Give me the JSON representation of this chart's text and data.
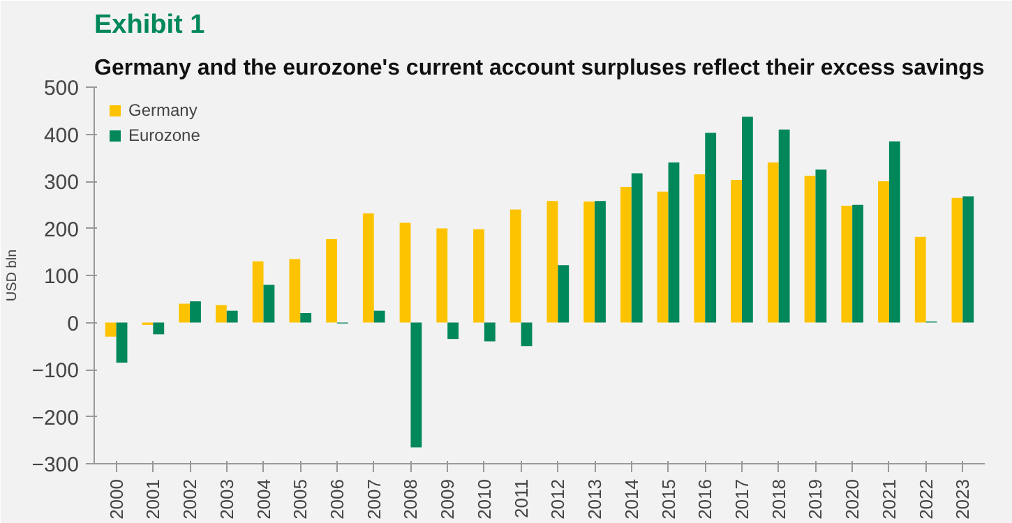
{
  "chart_data": {
    "type": "bar",
    "title": "Exhibit 1",
    "subtitle": "Germany and the eurozone's current account surpluses reflect their excess savings",
    "ylabel": "USD bln",
    "categories": [
      "2000",
      "2001",
      "2002",
      "2003",
      "2004",
      "2005",
      "2006",
      "2007",
      "2008",
      "2009",
      "2010",
      "2011",
      "2012",
      "2013",
      "2014",
      "2015",
      "2016",
      "2017",
      "2018",
      "2019",
      "2020",
      "2021",
      "2022",
      "2023"
    ],
    "series": [
      {
        "name": "Germany",
        "color": "#fdc300",
        "values": [
          -30,
          -5,
          40,
          37,
          130,
          135,
          177,
          232,
          212,
          200,
          198,
          240,
          258,
          257,
          288,
          278,
          315,
          303,
          340,
          312,
          248,
          300,
          182,
          265
        ]
      },
      {
        "name": "Eurozone",
        "color": "#00875a",
        "values": [
          -85,
          -25,
          45,
          25,
          80,
          20,
          -2,
          25,
          -265,
          -35,
          -40,
          -50,
          122,
          258,
          317,
          340,
          403,
          437,
          410,
          325,
          250,
          385,
          2,
          268
        ]
      }
    ],
    "ylim": [
      -300,
      500
    ],
    "yticks": [
      -300,
      -200,
      -100,
      0,
      100,
      200,
      300,
      400,
      500
    ],
    "grid": false,
    "legend": "top left"
  }
}
